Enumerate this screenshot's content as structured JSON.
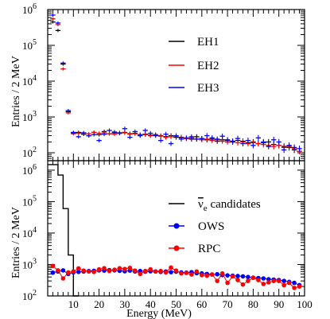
{
  "chart_data": [
    {
      "type": "scatter",
      "panel": "top",
      "ylabel": "Entries / 2 MeV",
      "yscale": "log",
      "ylim": [
        60,
        1000000
      ],
      "xlim": [
        0,
        100
      ],
      "y_tick_labels": [
        "10",
        "10",
        "10",
        "10",
        "10"
      ],
      "y_tick_exponents": [
        "2",
        "3",
        "4",
        "5",
        "6"
      ],
      "y_tick_values": [
        100,
        1000,
        10000,
        100000,
        1000000
      ],
      "legend": {
        "position": "top-right"
      },
      "series": [
        {
          "name": "EH1",
          "color": "#000000",
          "marker": "cross",
          "x": [
            2,
            4,
            6,
            8,
            10,
            12,
            14,
            16,
            18,
            20,
            22,
            24,
            26,
            28,
            30,
            32,
            34,
            36,
            38,
            40,
            42,
            44,
            46,
            48,
            50,
            52,
            54,
            56,
            58,
            60,
            62,
            64,
            66,
            68,
            70,
            72,
            74,
            76,
            78,
            80,
            82,
            84,
            86,
            88,
            90,
            92,
            94,
            96,
            98
          ],
          "y": [
            450000,
            260000,
            30000,
            1400,
            360,
            370,
            330,
            300,
            370,
            320,
            390,
            340,
            360,
            360,
            370,
            340,
            350,
            320,
            330,
            310,
            320,
            300,
            280,
            300,
            270,
            270,
            250,
            240,
            280,
            250,
            230,
            240,
            210,
            230,
            220,
            200,
            220,
            210,
            190,
            200,
            180,
            190,
            200,
            170,
            160,
            150,
            140,
            120,
            110
          ]
        },
        {
          "name": "EH2",
          "color": "#ff0000",
          "marker": "cross",
          "x": [
            2,
            4,
            6,
            8,
            10,
            12,
            14,
            16,
            18,
            20,
            22,
            24,
            26,
            28,
            30,
            32,
            34,
            36,
            38,
            40,
            42,
            44,
            46,
            48,
            50,
            52,
            54,
            56,
            58,
            60,
            62,
            64,
            66,
            68,
            70,
            72,
            74,
            76,
            78,
            80,
            82,
            84,
            86,
            88,
            90,
            92,
            94,
            96,
            98
          ],
          "y": [
            550000,
            380000,
            22000,
            1300,
            340,
            350,
            360,
            340,
            370,
            350,
            360,
            340,
            330,
            350,
            360,
            330,
            340,
            310,
            320,
            300,
            310,
            290,
            270,
            280,
            290,
            260,
            250,
            260,
            240,
            230,
            240,
            220,
            230,
            210,
            200,
            210,
            190,
            200,
            180,
            190,
            180,
            170,
            160,
            150,
            160,
            140,
            150,
            130,
            110
          ]
        },
        {
          "name": "EH3",
          "color": "#0000ff",
          "marker": "cross",
          "x": [
            2,
            4,
            6,
            8,
            10,
            12,
            14,
            16,
            18,
            20,
            22,
            24,
            26,
            28,
            30,
            32,
            34,
            36,
            38,
            40,
            42,
            44,
            46,
            48,
            50,
            52,
            54,
            56,
            58,
            60,
            62,
            64,
            66,
            68,
            70,
            72,
            74,
            76,
            78,
            80,
            82,
            84,
            86,
            88,
            90,
            92,
            94,
            96,
            98
          ],
          "y": [
            700000,
            420000,
            32000,
            1500,
            370,
            280,
            360,
            300,
            320,
            220,
            330,
            420,
            380,
            350,
            470,
            270,
            390,
            300,
            420,
            350,
            300,
            220,
            330,
            180,
            300,
            240,
            260,
            280,
            240,
            250,
            300,
            260,
            240,
            290,
            230,
            210,
            250,
            180,
            220,
            160,
            260,
            200,
            150,
            230,
            200,
            120,
            160,
            140,
            130
          ]
        }
      ]
    },
    {
      "type": "line",
      "panel": "bottom",
      "xlabel": "Energy (MeV)",
      "ylabel": "Entries / 2 MeV",
      "yscale": "log",
      "ylim": [
        100,
        2000000
      ],
      "xlim": [
        0,
        100
      ],
      "x_tick_values": [
        10,
        20,
        30,
        40,
        50,
        60,
        70,
        80,
        90,
        100
      ],
      "x_tick_labels": [
        "10",
        "20",
        "30",
        "40",
        "50",
        "60",
        "70",
        "80",
        "90",
        "100"
      ],
      "y_tick_labels": [
        "10",
        "10",
        "10",
        "10",
        "10"
      ],
      "y_tick_exponents": [
        "2",
        "3",
        "4",
        "5",
        "6"
      ],
      "y_tick_values": [
        100,
        1000,
        10000,
        100000,
        1000000
      ],
      "legend": {
        "position": "right"
      },
      "series": [
        {
          "name": "ν̄e candidates",
          "legend_base": "ν",
          "legend_sub": "e",
          "legend_rest": " candidates",
          "color": "#000000",
          "marker": "histogram",
          "x": [
            0,
            2,
            4,
            6,
            8,
            10,
            12
          ],
          "y": [
            1500000,
            1500000,
            700000,
            60000,
            2000,
            100,
            100
          ]
        },
        {
          "name": "OWS",
          "color": "#0000ff",
          "marker": "circle",
          "x": [
            2,
            4,
            6,
            8,
            10,
            12,
            14,
            16,
            18,
            20,
            22,
            24,
            26,
            28,
            30,
            32,
            34,
            36,
            38,
            40,
            42,
            44,
            46,
            48,
            50,
            52,
            54,
            56,
            58,
            60,
            62,
            64,
            66,
            68,
            70,
            72,
            74,
            76,
            78,
            80,
            82,
            84,
            86,
            88,
            90,
            92,
            94,
            96,
            98
          ],
          "y": [
            550,
            600,
            650,
            500,
            560,
            580,
            600,
            620,
            630,
            650,
            640,
            660,
            650,
            630,
            610,
            640,
            600,
            620,
            590,
            610,
            600,
            580,
            600,
            570,
            590,
            560,
            550,
            570,
            530,
            520,
            500,
            480,
            490,
            460,
            450,
            440,
            430,
            420,
            400,
            380,
            370,
            360,
            340,
            330,
            320,
            300,
            280,
            260,
            220
          ]
        },
        {
          "name": "RPC",
          "color": "#ff0000",
          "marker": "circle",
          "x": [
            2,
            4,
            6,
            8,
            10,
            12,
            14,
            16,
            18,
            20,
            22,
            24,
            26,
            28,
            30,
            32,
            34,
            36,
            38,
            40,
            42,
            44,
            46,
            48,
            50,
            52,
            54,
            56,
            58,
            60,
            62,
            64,
            66,
            68,
            70,
            72,
            74,
            76,
            78,
            80,
            82,
            84,
            86,
            88,
            90,
            92,
            94,
            96,
            98
          ],
          "y": [
            900,
            650,
            360,
            560,
            600,
            750,
            640,
            600,
            580,
            700,
            760,
            620,
            680,
            760,
            720,
            780,
            640,
            500,
            620,
            700,
            600,
            620,
            560,
            800,
            640,
            520,
            540,
            480,
            600,
            460,
            440,
            480,
            300,
            520,
            260,
            420,
            320,
            230,
            300,
            380,
            320,
            240,
            270,
            300,
            300,
            220,
            260,
            180,
            200
          ]
        }
      ]
    }
  ]
}
